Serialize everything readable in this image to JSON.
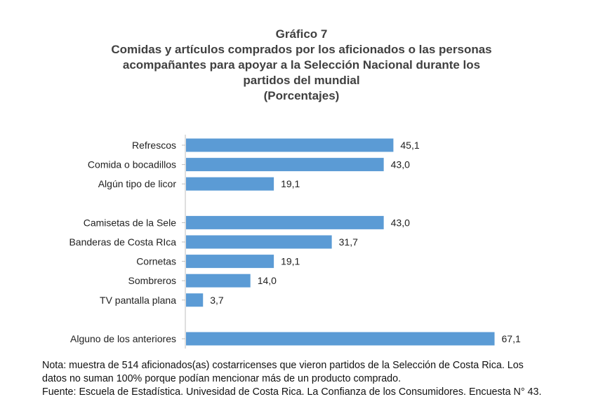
{
  "title_lines": [
    "Gráfico 7",
    "Comidas y artículos comprados por los aficionados o las personas",
    "acompañantes para apoyar a la Selección Nacional durante los",
    "partidos del mundial",
    "(Porcentajes)"
  ],
  "chart_data": {
    "type": "bar",
    "orientation": "horizontal",
    "categories": [
      "Refrescos",
      "Comida o bocadillos",
      "Algún tipo de licor",
      "Camisetas de la Sele",
      "Banderas de Costa RIca",
      "Cornetas",
      "Sombreros",
      "TV pantalla plana",
      "Alguno de los anteriores"
    ],
    "values": [
      45.1,
      43.0,
      19.1,
      43.0,
      31.7,
      19.1,
      14.0,
      3.7,
      67.1
    ],
    "value_labels": [
      "45,1",
      "43,0",
      "19,1",
      "43,0",
      "31,7",
      "19,1",
      "14,0",
      "3,7",
      "67,1"
    ],
    "groups": [
      [
        0,
        1,
        2
      ],
      [
        3,
        4,
        5,
        6,
        7
      ],
      [
        8
      ]
    ],
    "xlim": [
      0,
      100
    ],
    "bar_color": "#5B9BD5",
    "grid": false,
    "legend": "none"
  },
  "note_lines": [
    "Nota: muestra de 514 aficionados(as) costarricenses que vieron partidos de la Selección de Costa Rica. Los",
    "datos no suman 100% porque podían mencionar más de un producto comprado.",
    "Fuente: Escuela de Estadística. Univesidad de Costa Rica. La Confianza de los Consumidores. Encuesta N° 43."
  ]
}
